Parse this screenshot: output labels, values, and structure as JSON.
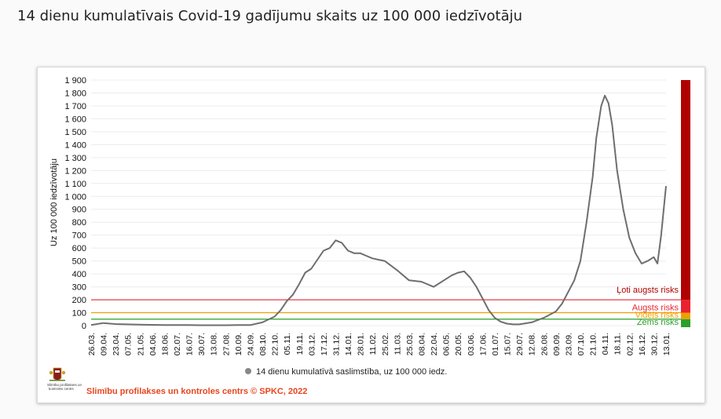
{
  "title": "14 dienu kumulatīvais Covid-19 gadījumu skaits uz 100 000 iedzīvotāju",
  "footer": "Slimību profilakses un kontroles centrs © SPKC, 2022",
  "logo": {
    "line1": "Slimību profilakses un",
    "line2": "kontroles centrs"
  },
  "colors": {
    "line": "#6e6e6e",
    "very_high": "#b00000",
    "high": "#e8232f",
    "medium": "#f0a000",
    "low": "#2aa02a",
    "footer": "#e8451e"
  },
  "chart_data": {
    "type": "line",
    "ylabel": "Uz 100 000 iedzīvotāju",
    "ylim": [
      0,
      1900
    ],
    "yticks": [
      0,
      100,
      200,
      300,
      400,
      500,
      600,
      700,
      800,
      900,
      1000,
      1100,
      1200,
      1300,
      1400,
      1500,
      1600,
      1700,
      1800,
      1900
    ],
    "yticklabels": [
      "0",
      "100",
      "200",
      "300",
      "400",
      "500",
      "600",
      "700",
      "800",
      "900",
      "1 000",
      "1 100",
      "1 200",
      "1 300",
      "1 400",
      "1 500",
      "1 600",
      "1 700",
      "1 800",
      "1 900"
    ],
    "xticklabels": [
      "26.03.",
      "09.04.",
      "23.04.",
      "07.05.",
      "21.05.",
      "04.06.",
      "18.06.",
      "02.07.",
      "16.07.",
      "30.07.",
      "13.08.",
      "27.08.",
      "10.09.",
      "24.09.",
      "08.10.",
      "22.10.",
      "05.11.",
      "19.11.",
      "03.12.",
      "17.12.",
      "31.12.",
      "14.01.",
      "28.01.",
      "11.02.",
      "25.02.",
      "11.03.",
      "25.03.",
      "08.04.",
      "22.04.",
      "06.05.",
      "20.05.",
      "03.06.",
      "17.06.",
      "01.07.",
      "15.07.",
      "29.07.",
      "12.08.",
      "26.08.",
      "09.09.",
      "23.09.",
      "07.10.",
      "21.10.",
      "04.11.",
      "18.11.",
      "02.12.",
      "16.12.",
      "30.12.",
      "13.01."
    ],
    "legend": "top-bottom",
    "series": [
      {
        "name": "14 dienu kumulatīvā saslimstība, uz 100 000 iedz.",
        "x": [
          0,
          1,
          2,
          3,
          4,
          5,
          6,
          7,
          8,
          9,
          10,
          11,
          12,
          13,
          14,
          15,
          15.5,
          16,
          16.5,
          17,
          17.5,
          18,
          18.5,
          19,
          19.5,
          20,
          20.5,
          21,
          21.5,
          22,
          22.5,
          23,
          24,
          25,
          26,
          27,
          28,
          29,
          29.5,
          30,
          30.5,
          31,
          31.5,
          32,
          32.5,
          33,
          33.5,
          34,
          34.5,
          35,
          36,
          37,
          38,
          38.5,
          39,
          39.5,
          40,
          40.5,
          41,
          41.3,
          41.7,
          42,
          42.3,
          42.6,
          43,
          43.5,
          44,
          44.5,
          45,
          45.5,
          46,
          46.3,
          46.6,
          47
        ],
        "y": [
          5,
          20,
          12,
          10,
          8,
          6,
          5,
          5,
          4,
          3,
          3,
          3,
          5,
          4,
          25,
          70,
          120,
          190,
          240,
          320,
          410,
          440,
          510,
          580,
          600,
          660,
          640,
          580,
          560,
          560,
          540,
          520,
          500,
          430,
          350,
          340,
          300,
          360,
          390,
          410,
          420,
          370,
          300,
          210,
          120,
          60,
          30,
          15,
          10,
          10,
          25,
          60,
          110,
          170,
          260,
          350,
          500,
          800,
          1150,
          1450,
          1700,
          1780,
          1720,
          1550,
          1200,
          900,
          680,
          560,
          480,
          500,
          530,
          480,
          700,
          1080
        ]
      }
    ],
    "risk_levels": [
      {
        "label": "Ļoti augsts risks",
        "from": 200,
        "to": 1950
      },
      {
        "label": "Augsts risks",
        "from": 100,
        "to": 200
      },
      {
        "label": "Vidējs risks",
        "from": 50,
        "to": 100
      },
      {
        "label": "Zems risks",
        "from": 0,
        "to": 50
      }
    ]
  }
}
